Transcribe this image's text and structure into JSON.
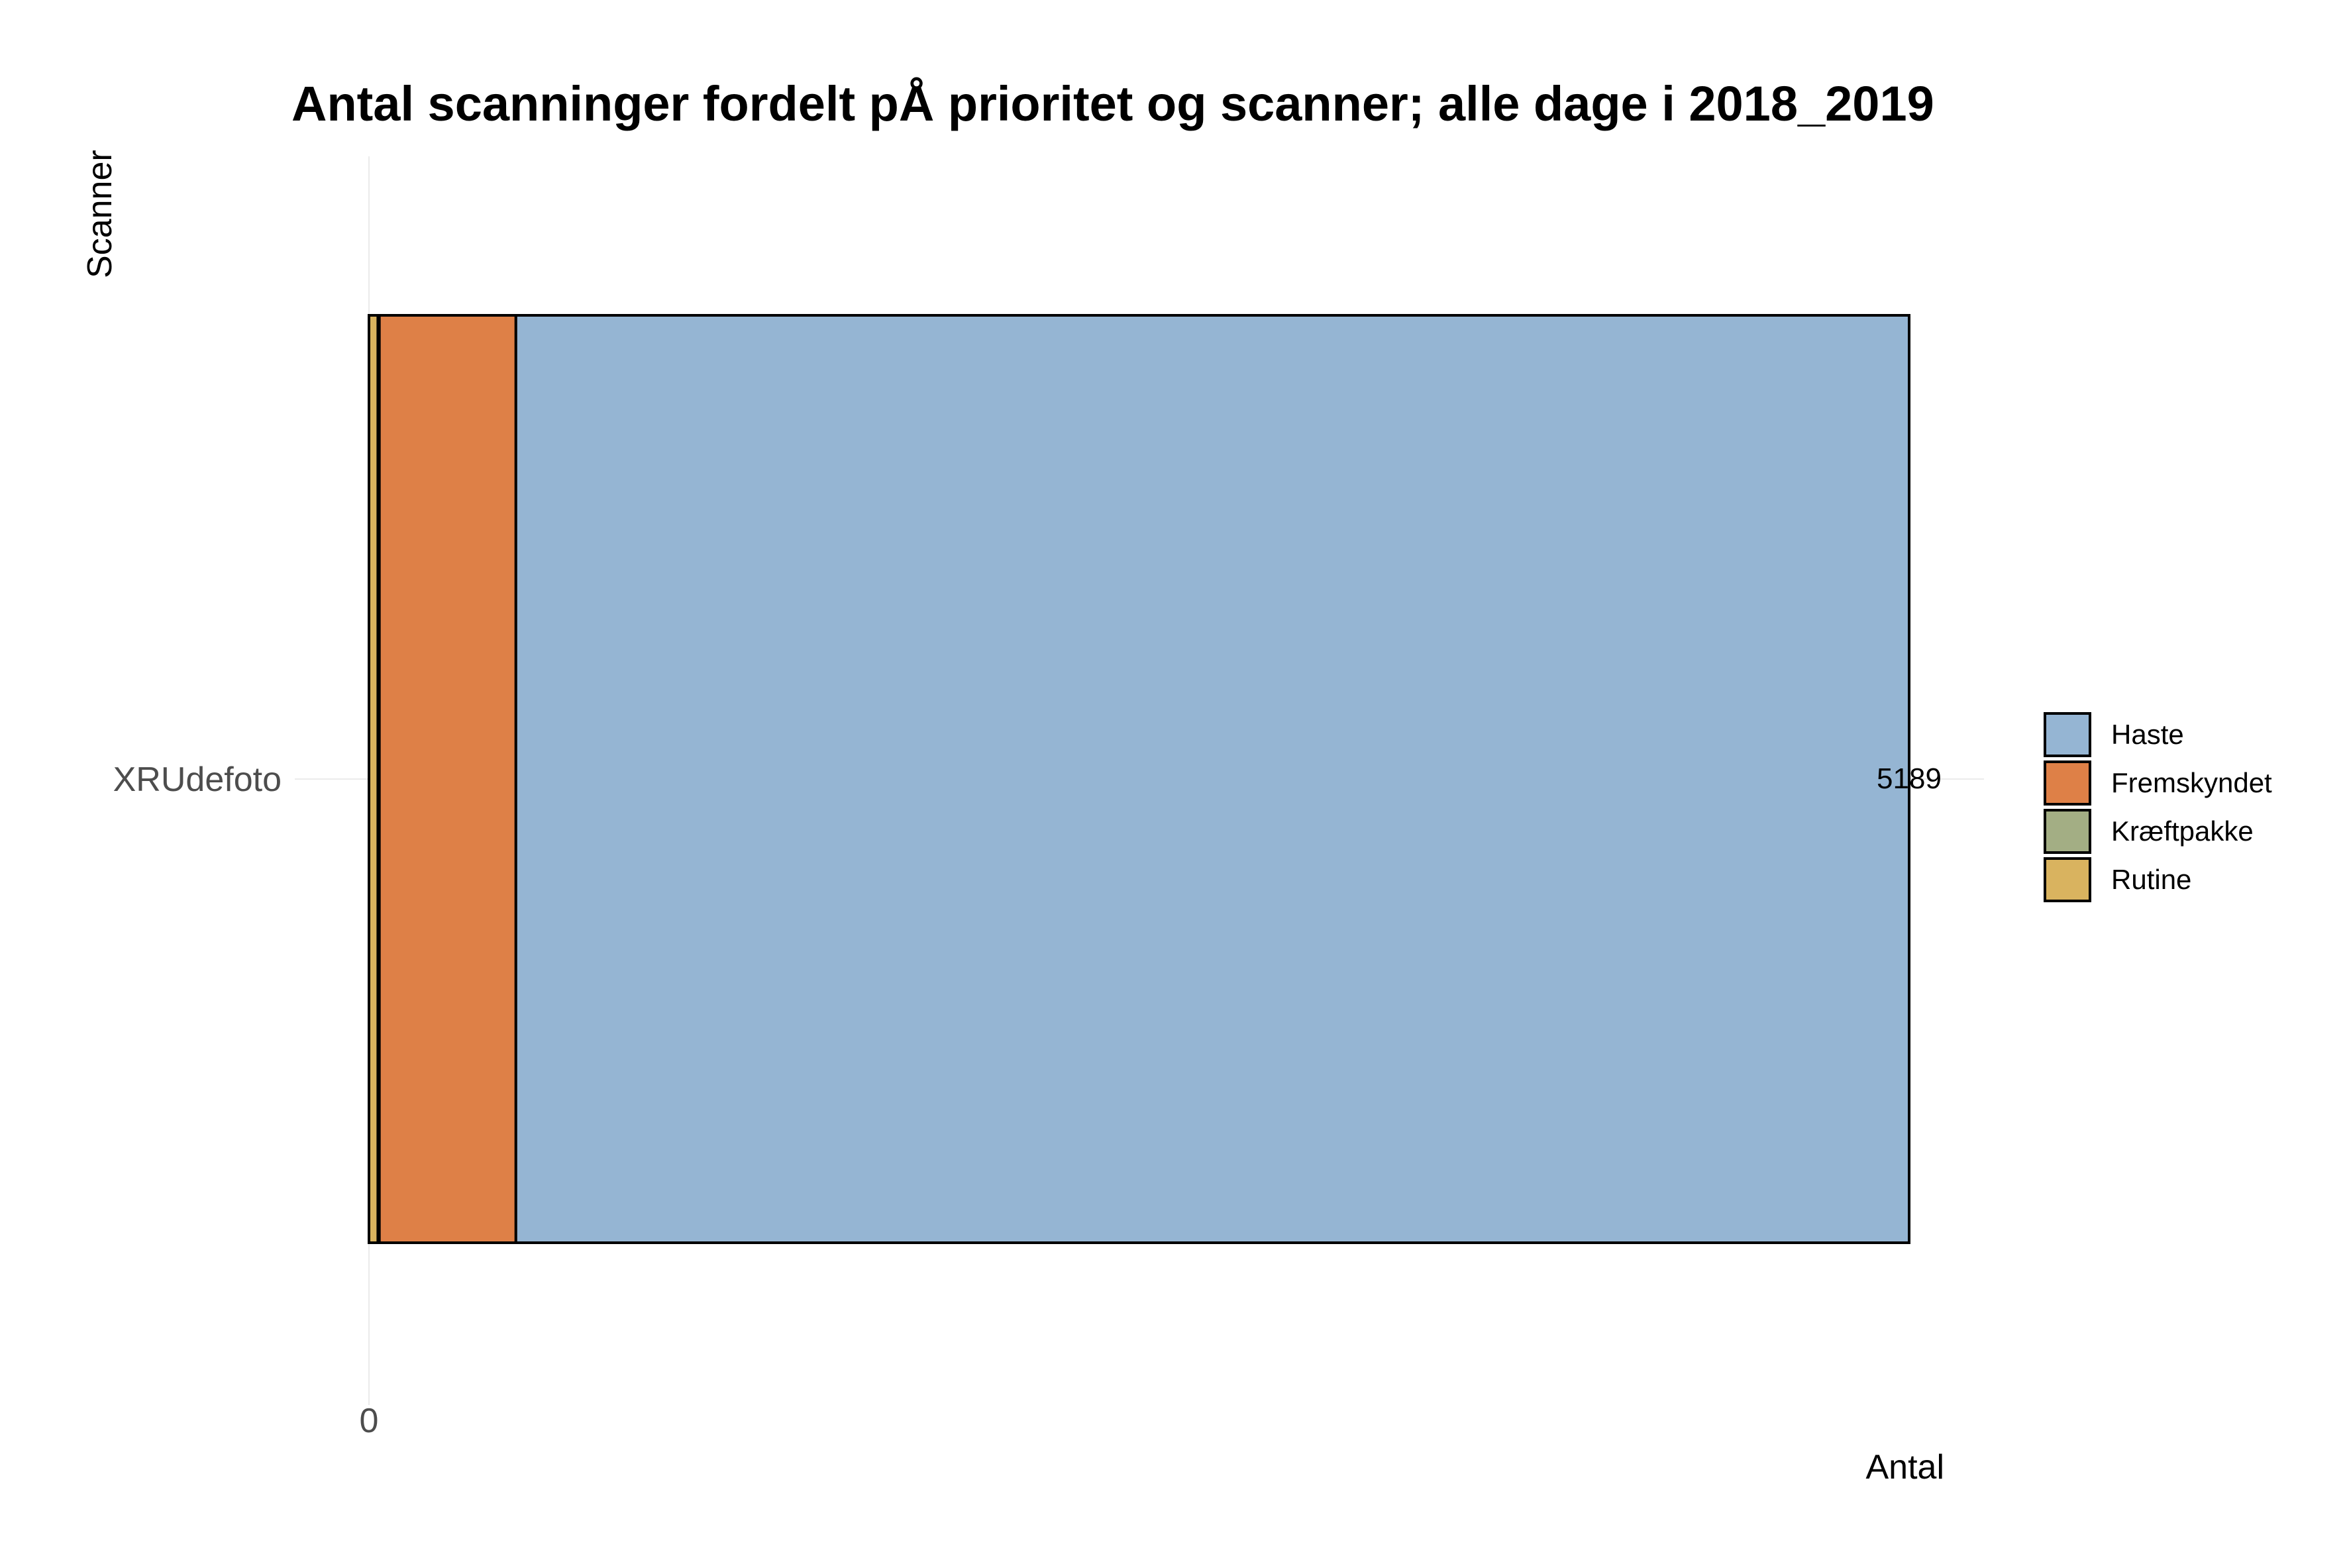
{
  "chart_data": {
    "type": "bar",
    "orientation": "horizontal",
    "stacked": true,
    "title": "Antal scanninger fordelt pÅ prioritet og scanner; alle dage i 2018_2019",
    "xlabel": "Antal",
    "ylabel": "Scanner",
    "categories": [
      "XRUdefoto"
    ],
    "series": [
      {
        "name": "Rutine",
        "color": "#D9B35F",
        "values": [
          30
        ]
      },
      {
        "name": "Kræftpakke",
        "color": "#A3AE84",
        "values": [
          5
        ]
      },
      {
        "name": "Fremskyndet",
        "color": "#DE8047",
        "values": [
          460
        ]
      },
      {
        "name": "Haste",
        "color": "#95B5D3",
        "values": [
          4694
        ]
      }
    ],
    "totals": [
      5189
    ],
    "x_tick_labels": [
      "0"
    ],
    "xlim": [
      0,
      5189
    ],
    "grid": true,
    "legend": {
      "position": "right",
      "entries": [
        {
          "label": "Haste",
          "color": "#95B5D3"
        },
        {
          "label": "Fremskyndet",
          "color": "#DE8047"
        },
        {
          "label": "Kræftpakke",
          "color": "#A3AE84"
        },
        {
          "label": "Rutine",
          "color": "#D9B35F"
        }
      ]
    }
  }
}
